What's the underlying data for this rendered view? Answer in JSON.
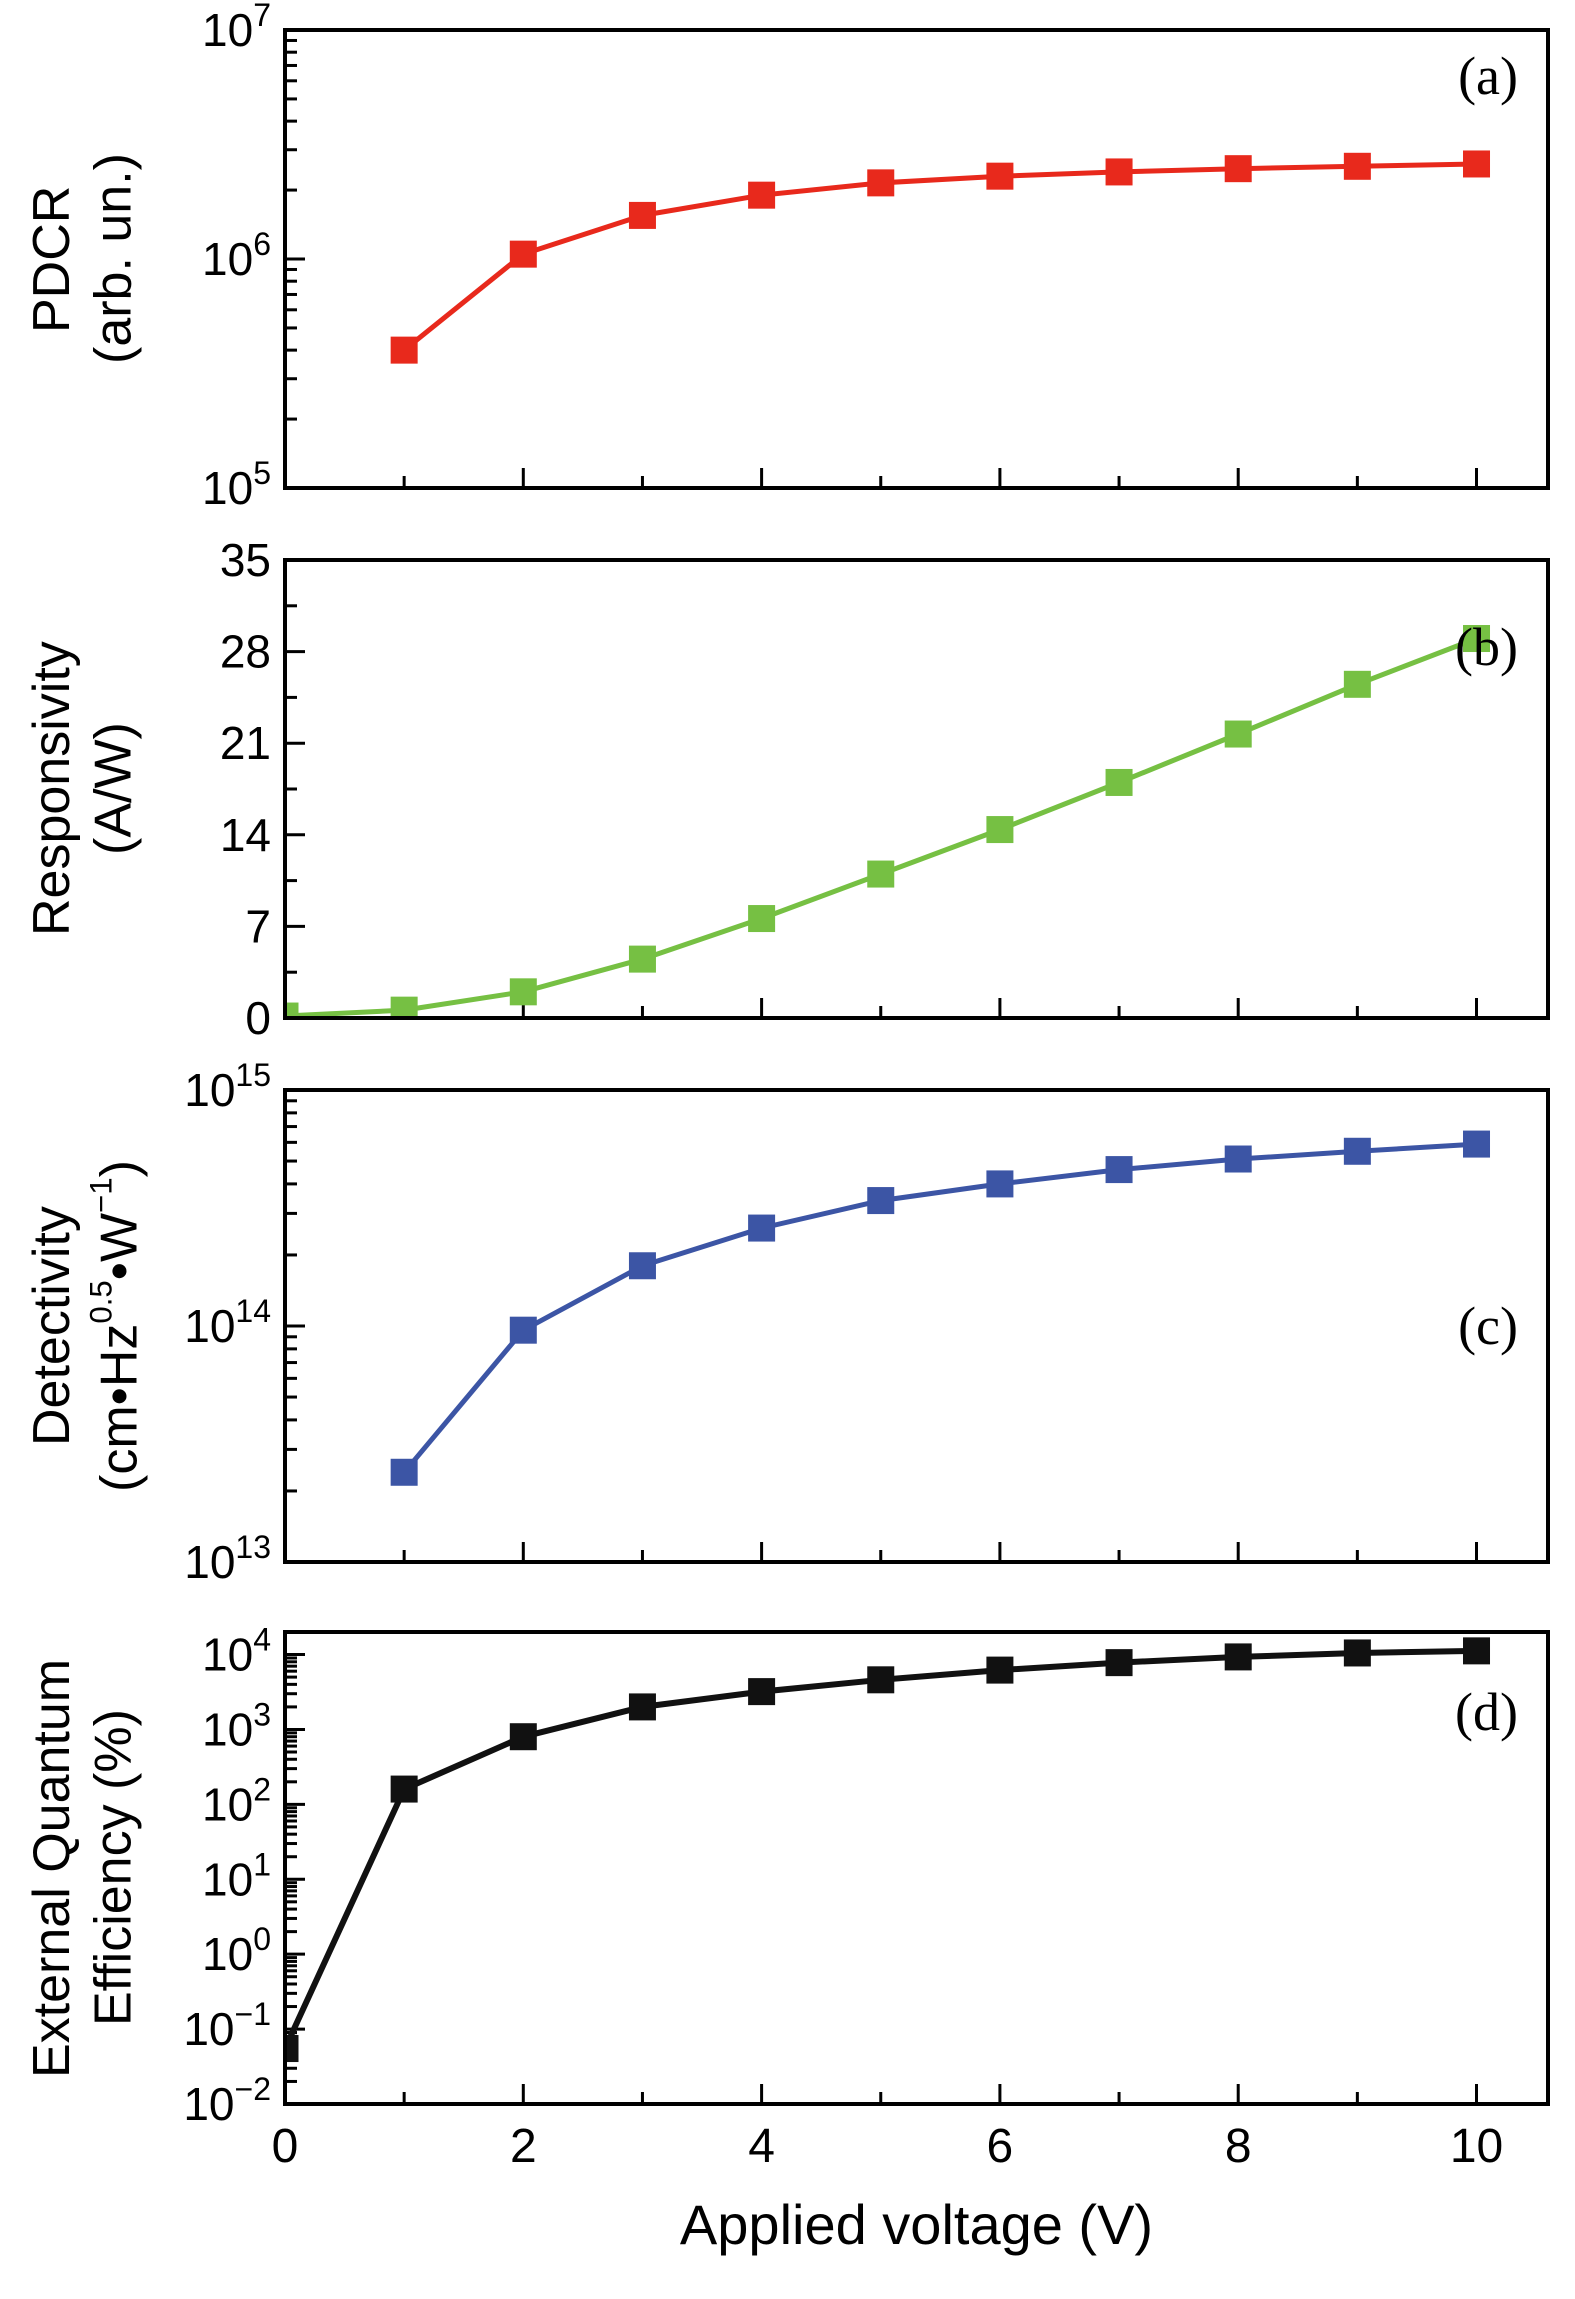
{
  "figure": {
    "xlabel": "Applied voltage (V)",
    "background": "#ffffff",
    "xlim": [
      0,
      10.6
    ],
    "xticks_major": [
      0,
      2,
      4,
      6,
      8,
      10
    ],
    "xticks_minor": [
      1,
      3,
      5,
      7,
      9
    ]
  },
  "chart_data": [
    {
      "type": "line",
      "id": "a",
      "panel_label": "(a)",
      "panel_label_frac": 0.1,
      "ylabel_lines": [
        "PDCR",
        "(arb. un.)"
      ],
      "yscale": "log",
      "ylim": [
        100000.0,
        10000000.0
      ],
      "ytick_exponents": [
        5,
        6,
        7
      ],
      "color": "#e8291c",
      "line_width": 5,
      "x": [
        1,
        2,
        3,
        4,
        5,
        6,
        7,
        8,
        9,
        10
      ],
      "y": [
        400000.0,
        1050000.0,
        1550000.0,
        1900000.0,
        2150000.0,
        2300000.0,
        2400000.0,
        2480000.0,
        2540000.0,
        2600000.0
      ],
      "show_x_tick_labels": false
    },
    {
      "type": "line",
      "id": "b",
      "panel_label": "(b)",
      "panel_label_frac": 0.19,
      "ylabel_lines": [
        "Responsivity",
        "(A/W)"
      ],
      "yscale": "linear",
      "ylim": [
        0,
        35
      ],
      "yticks": [
        0,
        7,
        14,
        21,
        28,
        35
      ],
      "yticks_minor": [
        3.5,
        10.5,
        17.5,
        24.5,
        31.5
      ],
      "color": "#76c043",
      "line_width": 5,
      "x": [
        0,
        1,
        2,
        3,
        4,
        5,
        6,
        7,
        8,
        9,
        10
      ],
      "y": [
        0.15,
        0.6,
        2.0,
        4.5,
        7.6,
        11.0,
        14.4,
        18.0,
        21.7,
        25.5,
        29.0
      ],
      "show_x_tick_labels": false
    },
    {
      "type": "line",
      "id": "c",
      "panel_label": "(c)",
      "panel_label_frac": 0.5,
      "ylabel_lines": [
        "Detectivity"
      ],
      "ylabel_line2_parts": [
        "(cm•Hz",
        "0.5",
        "•W",
        "−1",
        ")"
      ],
      "yscale": "log",
      "ylim": [
        10000000000000.0,
        1000000000000000.0
      ],
      "ytick_exponents": [
        13,
        14,
        15
      ],
      "color": "#3c55a5",
      "line_width": 5,
      "x": [
        1,
        2,
        3,
        4,
        5,
        6,
        7,
        8,
        9,
        10
      ],
      "y": [
        24000000000000.0,
        96000000000000.0,
        180000000000000.0,
        260000000000000.0,
        340000000000000.0,
        400000000000000.0,
        460000000000000.0,
        510000000000000.0,
        550000000000000.0,
        590000000000000.0
      ],
      "show_x_tick_labels": false
    },
    {
      "type": "line",
      "id": "d",
      "panel_label": "(d)",
      "panel_label_frac": 0.17,
      "ylabel_lines": [
        "External Quantum",
        "Efficiency (%)"
      ],
      "yscale": "log",
      "ylim": [
        0.01,
        20000.0
      ],
      "ytick_exponents": [
        -2,
        -1,
        0,
        1,
        2,
        3,
        4
      ],
      "color": "#111111",
      "line_width": 6,
      "x": [
        0,
        1,
        2,
        3,
        4,
        5,
        6,
        7,
        8,
        9,
        10
      ],
      "y": [
        0.055,
        160,
        800,
        2000,
        3200,
        4600,
        6200,
        7800,
        9300,
        10500,
        11200
      ],
      "show_x_tick_labels": true
    }
  ]
}
